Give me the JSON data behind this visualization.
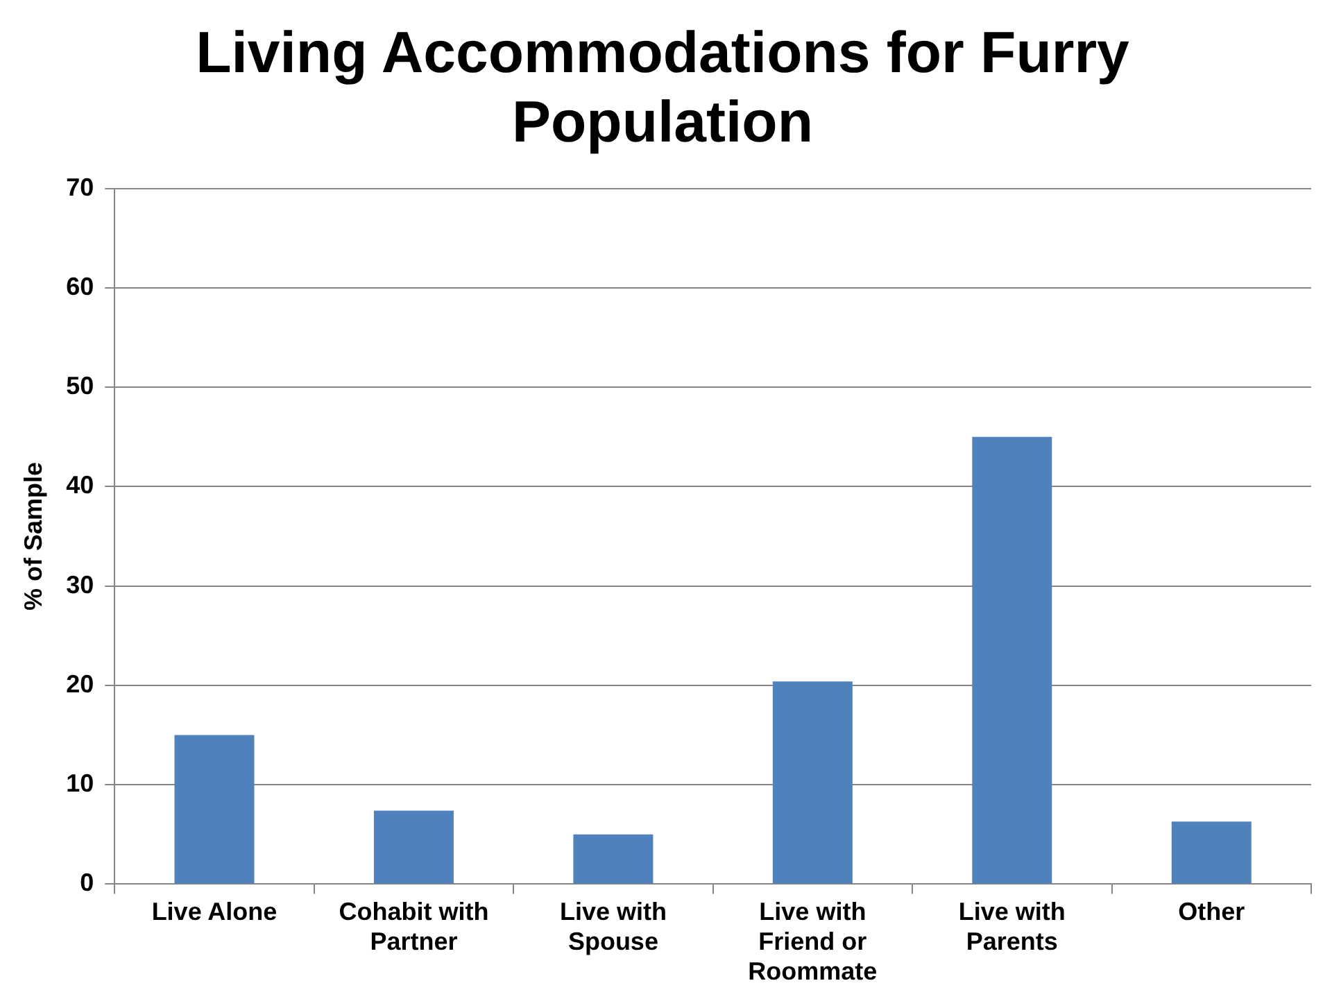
{
  "chart_data": {
    "type": "bar",
    "title": "Living Accommodations for Furry Population",
    "ylabel": "% of Sample",
    "categories": [
      "Live Alone",
      "Cohabit with Partner",
      "Live with Spouse",
      "Live with Friend or Roommate",
      "Live with Parents",
      "Other"
    ],
    "values": [
      15.0,
      7.4,
      5.0,
      20.4,
      45.0,
      6.3
    ],
    "color": "#4f81bd",
    "ylim": [
      0,
      70
    ],
    "yticks": [
      0,
      10,
      20,
      30,
      40,
      50,
      60,
      70
    ],
    "grid": "y",
    "legend": false
  }
}
